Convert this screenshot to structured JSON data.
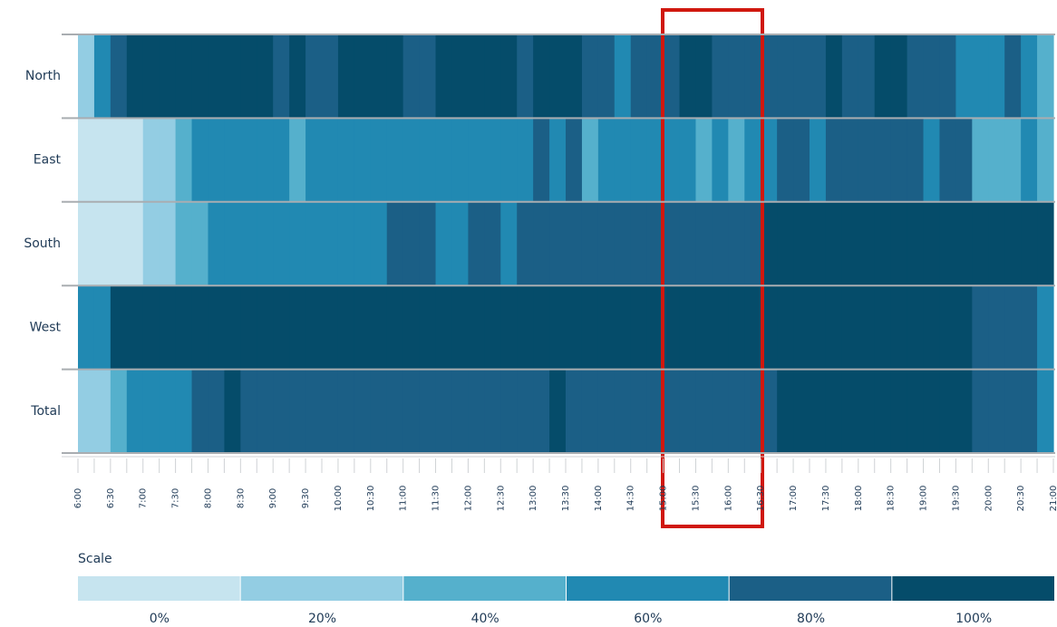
{
  "chart_data": {
    "type": "heatmap",
    "xticks": [
      "6:00",
      "6:30",
      "7:00",
      "7:30",
      "8:00",
      "8:30",
      "9:00",
      "9:30",
      "10:00",
      "10:30",
      "11:00",
      "11:30",
      "12:00",
      "12:30",
      "13:00",
      "13:30",
      "14:00",
      "14:30",
      "15:00",
      "15:30",
      "16:00",
      "16:30",
      "17:00",
      "17:30",
      "18:00",
      "18:30",
      "19:00",
      "19:30",
      "20:00",
      "20:30",
      "21:00"
    ],
    "series": [
      {
        "name": "North",
        "values": [
          20,
          60,
          80,
          100,
          100,
          100,
          100,
          100,
          100,
          100,
          100,
          100,
          80,
          100,
          80,
          80,
          100,
          100,
          100,
          100,
          80,
          80,
          100,
          100,
          100,
          100,
          100,
          80,
          100,
          100,
          100,
          80,
          80,
          60,
          80,
          80,
          80,
          100,
          100,
          80,
          80,
          80,
          80,
          80,
          80,
          80,
          100,
          80,
          80,
          100,
          100,
          80,
          80,
          80,
          60,
          60,
          60,
          80,
          60,
          40
        ]
      },
      {
        "name": "East",
        "values": [
          0,
          0,
          0,
          0,
          20,
          20,
          40,
          60,
          60,
          60,
          60,
          60,
          60,
          40,
          60,
          60,
          60,
          60,
          60,
          60,
          60,
          60,
          60,
          60,
          60,
          60,
          60,
          60,
          80,
          60,
          80,
          40,
          60,
          60,
          60,
          60,
          60,
          60,
          40,
          60,
          40,
          60,
          60,
          80,
          80,
          60,
          80,
          80,
          80,
          80,
          80,
          80,
          60,
          80,
          80,
          40,
          40,
          40,
          60,
          40
        ]
      },
      {
        "name": "South",
        "values": [
          0,
          0,
          0,
          0,
          20,
          20,
          40,
          40,
          60,
          60,
          60,
          60,
          60,
          60,
          60,
          60,
          60,
          60,
          60,
          80,
          80,
          80,
          60,
          60,
          80,
          80,
          60,
          80,
          80,
          80,
          80,
          80,
          80,
          80,
          80,
          80,
          80,
          80,
          80,
          80,
          80,
          80,
          100,
          100,
          100,
          100,
          100,
          100,
          100,
          100,
          100,
          100,
          100,
          100,
          100,
          100,
          100,
          100,
          100,
          100
        ]
      },
      {
        "name": "West",
        "values": [
          60,
          60,
          100,
          100,
          100,
          100,
          100,
          100,
          100,
          100,
          100,
          100,
          100,
          100,
          100,
          100,
          100,
          100,
          100,
          100,
          100,
          100,
          100,
          100,
          100,
          100,
          100,
          100,
          100,
          100,
          100,
          100,
          100,
          100,
          100,
          100,
          100,
          100,
          100,
          100,
          100,
          100,
          100,
          100,
          100,
          100,
          100,
          100,
          100,
          100,
          100,
          100,
          100,
          100,
          100,
          80,
          80,
          80,
          80,
          60
        ]
      },
      {
        "name": "Total",
        "values": [
          20,
          20,
          40,
          60,
          60,
          60,
          60,
          80,
          80,
          100,
          80,
          80,
          80,
          80,
          80,
          80,
          80,
          80,
          80,
          80,
          80,
          80,
          80,
          80,
          80,
          80,
          80,
          80,
          80,
          100,
          80,
          80,
          80,
          80,
          80,
          80,
          80,
          80,
          80,
          80,
          80,
          80,
          80,
          100,
          100,
          100,
          100,
          100,
          100,
          100,
          100,
          100,
          100,
          100,
          100,
          80,
          80,
          80,
          80,
          60
        ]
      }
    ],
    "scale": {
      "title": "Scale",
      "levels": [
        0,
        20,
        40,
        60,
        80,
        100
      ],
      "value_labels": [
        "0%",
        "20%",
        "40%",
        "60%",
        "80%",
        "100%"
      ],
      "colors": [
        "#c6e4ef",
        "#93cde3",
        "#55b0cc",
        "#2189b2",
        "#1b5f86",
        "#054c6a"
      ]
    }
  }
}
